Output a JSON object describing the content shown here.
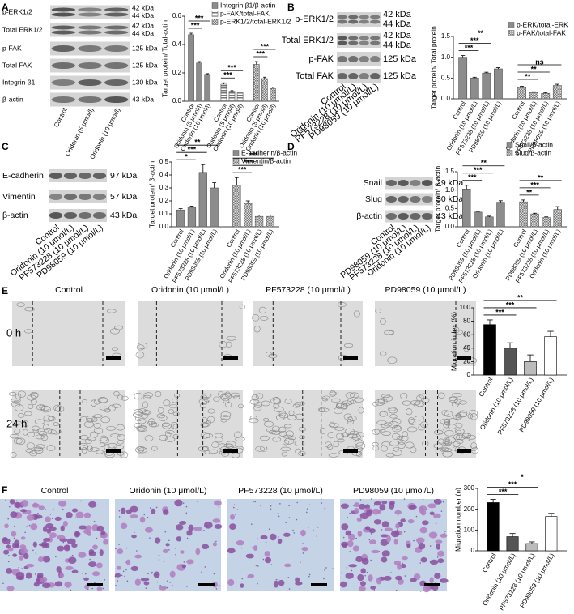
{
  "panels": [
    {
      "label": "A",
      "blot": {
        "rows": [
          {
            "name": "p-ERK1/2",
            "kda": [
              "42 kDa",
              "44 kDa"
            ]
          },
          {
            "name": "Total ERK1/2",
            "kda": [
              "42 kDa",
              "44 kDa"
            ]
          },
          {
            "name": "p-FAK",
            "kda": [
              "125 kDa"
            ]
          },
          {
            "name": "Total FAK",
            "kda": [
              "125 kDa"
            ]
          },
          {
            "name": "Integrin β1",
            "kda": [
              "130 kDa"
            ]
          },
          {
            "name": "β-actin",
            "kda": [
              "43 kDa"
            ]
          }
        ],
        "lanes": [
          "Control",
          "Oridonin (5 μmol/l)",
          "Oridonin (10 μmol/l)"
        ]
      }
    },
    {
      "label": "B",
      "blot": {
        "rows": [
          {
            "name": "p-ERK1/2",
            "kda": [
              "42 kDa",
              "44 kDa"
            ]
          },
          {
            "name": "Total ERK1/2",
            "kda": [
              "42 kDa",
              "44 kDa"
            ]
          },
          {
            "name": "p-FAK",
            "kda": [
              "125 kDa"
            ]
          },
          {
            "name": "Total FAK",
            "kda": [
              "125 kDa"
            ]
          }
        ],
        "lanes": [
          "Control",
          "Oridonin (10 μmol/L)",
          "PF573228 (10 μmol/L)",
          "PD98059 (10 μmol/L)"
        ]
      }
    },
    {
      "label": "C",
      "blot": {
        "rows": [
          {
            "name": "E-cadherin",
            "kda": [
              "97 kDa"
            ]
          },
          {
            "name": "Vimentin",
            "kda": [
              "57 kDa"
            ]
          },
          {
            "name": "β-actin",
            "kda": [
              "43 kDa"
            ]
          }
        ],
        "lanes": [
          "Control",
          "Oridonin (10 μmol/L)",
          "PF573228 (10 μmol/L)",
          "PD98059 (10 μmol/L)"
        ]
      }
    },
    {
      "label": "D",
      "blot": {
        "rows": [
          {
            "name": "Snail",
            "kda": [
              "29 kDa"
            ]
          },
          {
            "name": "Slug",
            "kda": [
              "30 kDa"
            ]
          },
          {
            "name": "β-actin",
            "kda": [
              "43 kDa"
            ]
          }
        ],
        "lanes": [
          "Control",
          "PD98059 (10 μmol/L)",
          "PF573228 (10 μmol/L)",
          "Oridonin (10 μmol/L)"
        ]
      }
    },
    {
      "label": "E",
      "columns": [
        "Control",
        "Oridonin (10 μmol/L)",
        "PF573228 (10 μmol/L)",
        "PD98059 (10 μmol/L)"
      ],
      "rows": [
        "0 h",
        "24 h"
      ]
    },
    {
      "label": "F",
      "columns": [
        "Control",
        "Oridonin (10 μmol/L)",
        "PF573228 (10 μmol/L)",
        "PD98059 (10 μmol/L)"
      ]
    }
  ],
  "chart_data": [
    {
      "type": "bar",
      "ylabel": "Target protein/ Total-actin",
      "categories": [
        "Control",
        "Oridonin (5 μmol/l)",
        "Oridonin (10 μmol/l)"
      ],
      "series": [
        {
          "name": "Integrin β1/β-actin",
          "color": "#8c8c8c",
          "pattern": "solid",
          "values": [
            0.47,
            0.27,
            0.19
          ],
          "errors": [
            0.01,
            0.01,
            0.005
          ]
        },
        {
          "name": "p-FAK/total-FAK",
          "color": "#8c8c8c",
          "pattern": "horizontal",
          "values": [
            0.12,
            0.07,
            0.06
          ],
          "errors": [
            0.01,
            0.005,
            0.005
          ]
        },
        {
          "name": "p-ERK1/2/total-ERK1/2",
          "color": "#8c8c8c",
          "pattern": "checker",
          "values": [
            0.26,
            0.16,
            0.09
          ],
          "errors": [
            0.02,
            0.01,
            0.01
          ]
        }
      ],
      "ylim": [
        0,
        0.6
      ],
      "yticks": [
        {
          "value": 0,
          "label": "0.0"
        },
        0.2,
        0.4,
        0.6
      ],
      "legend": "upper right",
      "significance": [
        {
          "label": "***",
          "series": 0,
          "from": 0,
          "to": 1
        },
        {
          "label": "***",
          "series": 0,
          "from": 0,
          "to": 2
        },
        {
          "label": "***",
          "series": 1,
          "from": 0,
          "to": 1
        },
        {
          "label": "***",
          "series": 1,
          "from": 0,
          "to": 2
        },
        {
          "label": "***",
          "series": 2,
          "from": 0,
          "to": 1
        },
        {
          "label": "***",
          "series": 2,
          "from": 0,
          "to": 2
        }
      ]
    },
    {
      "type": "bar",
      "ylabel": "Target protein/ Total protein",
      "categories": [
        "Control",
        "Oridonin (10 μmol/L)",
        "PF573228 (10 μmol/L)",
        "PD98059 (10 μmol/L)"
      ],
      "series": [
        {
          "name": "p-ERK/total-ERK",
          "color": "#8c8c8c",
          "pattern": "solid",
          "values": [
            1.0,
            0.5,
            0.62,
            0.72
          ],
          "errors": [
            0.04,
            0.02,
            0.02,
            0.03
          ]
        },
        {
          "name": "p-FAK/total-FAK",
          "color": "#8c8c8c",
          "pattern": "checker",
          "values": [
            0.27,
            0.15,
            0.13,
            0.32
          ],
          "errors": [
            0.03,
            0.02,
            0.02,
            0.03
          ]
        }
      ],
      "ylim": [
        0,
        1.5
      ],
      "yticks": [
        {
          "value": 0,
          "label": "0.0"
        },
        0.5,
        {
          "value": 1,
          "label": "1.0"
        },
        1.5
      ],
      "legend": "upper right",
      "significance": [
        {
          "label": "***",
          "series": 0,
          "from": 0,
          "to": 1
        },
        {
          "label": "***",
          "series": 0,
          "from": 0,
          "to": 2
        },
        {
          "label": "**",
          "series": 0,
          "from": 0,
          "to": 3
        },
        {
          "label": "**",
          "series": 1,
          "from": 0,
          "to": 1
        },
        {
          "label": "**",
          "series": 1,
          "from": 0,
          "to": 2
        },
        {
          "label": "ns",
          "series": 1,
          "from": 0,
          "to": 3
        }
      ]
    },
    {
      "type": "bar",
      "ylabel": "Target protein/ β-actin",
      "categories": [
        "Control",
        "Oridonin (10 μmol/L)",
        "PF573228 (10 μmol/L)",
        "PD98059 (10 μmol/L)"
      ],
      "series": [
        {
          "name": "E-cadherin/β-actin",
          "color": "#8c8c8c",
          "pattern": "solid",
          "values": [
            0.13,
            0.15,
            0.42,
            0.3
          ],
          "errors": [
            0.01,
            0.01,
            0.06,
            0.04
          ]
        },
        {
          "name": "Vimentin/β-actin",
          "color": "#8c8c8c",
          "pattern": "checker",
          "values": [
            0.32,
            0.18,
            0.08,
            0.08
          ],
          "errors": [
            0.06,
            0.02,
            0.01,
            0.01
          ]
        }
      ],
      "ylim": [
        0,
        0.5
      ],
      "yticks": [
        {
          "value": 0,
          "label": "0.0"
        },
        0.1,
        0.2,
        0.3,
        0.4,
        0.5
      ],
      "legend": "upper right",
      "significance": [
        {
          "label": "*",
          "series": 0,
          "from": 0,
          "to": 1
        },
        {
          "label": "***",
          "series": 0,
          "from": 0,
          "to": 2
        },
        {
          "label": "**",
          "series": 0,
          "from": 0,
          "to": 3
        },
        {
          "label": "***",
          "series": 1,
          "from": 0,
          "to": 1
        },
        {
          "label": "***",
          "series": 1,
          "from": 0,
          "to": 2
        },
        {
          "label": "***",
          "series": 1,
          "from": 0,
          "to": 3
        }
      ]
    },
    {
      "type": "bar",
      "ylabel": "Target protein/ β-actin",
      "categories": [
        "Control",
        "PD98059 (10 μmol/L)",
        "PF573228 (10 μmol/L)",
        "Oridonin (10 μmol/L)"
      ],
      "series": [
        {
          "name": "Snail/β-actin",
          "color": "#8c8c8c",
          "pattern": "solid",
          "values": [
            1.03,
            0.4,
            0.27,
            0.67
          ],
          "errors": [
            0.1,
            0.02,
            0.02,
            0.04
          ]
        },
        {
          "name": "Slug/β-actin",
          "color": "#8c8c8c",
          "pattern": "checker",
          "values": [
            0.68,
            0.35,
            0.25,
            0.47
          ],
          "errors": [
            0.05,
            0.02,
            0.02,
            0.08
          ]
        }
      ],
      "ylim": [
        0,
        1.5
      ],
      "yticks": [
        {
          "value": 0,
          "label": "0.0"
        },
        0.5,
        {
          "value": 1,
          "label": "1.0"
        },
        1.5
      ],
      "legend": "upper right",
      "significance": [
        {
          "label": "***",
          "series": 0,
          "from": 0,
          "to": 1
        },
        {
          "label": "***",
          "series": 0,
          "from": 0,
          "to": 2
        },
        {
          "label": "**",
          "series": 0,
          "from": 0,
          "to": 3
        },
        {
          "label": "**",
          "series": 1,
          "from": 0,
          "to": 1
        },
        {
          "label": "***",
          "series": 1,
          "from": 0,
          "to": 2
        },
        {
          "label": "**",
          "series": 1,
          "from": 0,
          "to": 3
        }
      ]
    },
    {
      "type": "bar",
      "ylabel": "Migration index (%)",
      "categories": [
        "Control",
        "Oridonin (10 μmol/L)",
        "PF573228 (10 μmol/L)",
        "PD98059 (10 μmol/L)"
      ],
      "series": [
        {
          "colors": [
            "#000000",
            "#555555",
            "#bbbbbb",
            "#ffffff"
          ],
          "values": [
            75,
            40,
            20,
            57
          ],
          "errors": [
            7,
            8,
            10,
            8
          ]
        }
      ],
      "ylim": [
        0,
        100
      ],
      "yticks": [
        0,
        20,
        40,
        60,
        80,
        100
      ],
      "significance": [
        {
          "label": "***",
          "series": 0,
          "from": 0,
          "to": 1
        },
        {
          "label": "***",
          "series": 0,
          "from": 0,
          "to": 2
        },
        {
          "label": "**",
          "series": 0,
          "from": 0,
          "to": 3
        }
      ]
    },
    {
      "type": "bar",
      "ylabel": "Migration number (n)",
      "categories": [
        "Control",
        "Oridonin (10 μmol/L)",
        "PF573228 (10 μmol/L)",
        "PD98059 (10 μmol/L)"
      ],
      "series": [
        {
          "colors": [
            "#000000",
            "#555555",
            "#bbbbbb",
            "#ffffff"
          ],
          "values": [
            232,
            68,
            35,
            165
          ],
          "errors": [
            15,
            15,
            8,
            15
          ]
        }
      ],
      "ylim": [
        0,
        300
      ],
      "yticks": [
        0,
        100,
        200,
        300
      ],
      "significance": [
        {
          "label": "***",
          "series": 0,
          "from": 0,
          "to": 1
        },
        {
          "label": "***",
          "series": 0,
          "from": 0,
          "to": 2
        },
        {
          "label": "*",
          "series": 0,
          "from": 0,
          "to": 3
        }
      ]
    }
  ]
}
